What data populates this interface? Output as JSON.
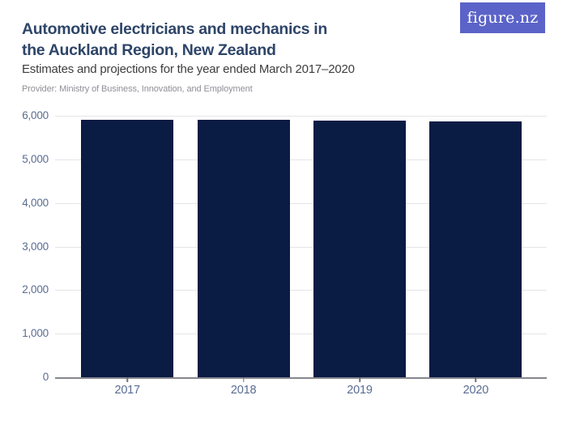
{
  "header": {
    "title_line1": "Automotive electricians and mechanics in",
    "title_line2": "the Auckland Region, New Zealand",
    "subtitle": "Estimates and projections for the year ended March 2017–2020",
    "provider": "Provider: Ministry of Business, Innovation, and Employment",
    "logo_text": "figure.nz"
  },
  "colors": {
    "bar": "#0A1B44",
    "logo_bg": "#5B63C8",
    "title": "#2E4568",
    "axis_label": "#5A6C92",
    "gridline": "#E5E5E9",
    "baseline": "#86868E"
  },
  "chart_data": {
    "type": "bar",
    "title": "Automotive electricians and mechanics in the Auckland Region, New Zealand",
    "subtitle": "Estimates and projections for the year ended March 2017–2020",
    "source": "Provider: Ministry of Business, Innovation, and Employment",
    "categories": [
      "2017",
      "2018",
      "2019",
      "2020"
    ],
    "values": [
      5920,
      5920,
      5900,
      5880
    ],
    "xlabel": "",
    "ylabel": "",
    "ylim": [
      0,
      6000
    ],
    "ytick_interval": 1000,
    "ytick_labels": [
      "0",
      "1,000",
      "2,000",
      "3,000",
      "4,000",
      "5,000",
      "6,000"
    ],
    "grid": "horizontal-only",
    "legend": "none",
    "bar_color": "#0A1B44"
  }
}
